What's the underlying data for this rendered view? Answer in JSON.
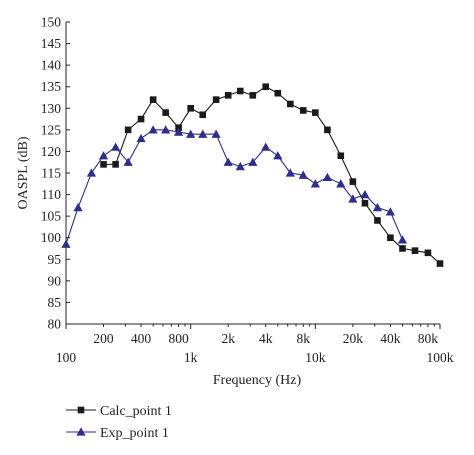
{
  "chart_data": {
    "type": "line",
    "xscale": "log",
    "xlabel": "Frequency (Hz)",
    "ylabel": "OASPL (dB)",
    "xlim": [
      100,
      100000
    ],
    "ylim": [
      80,
      150
    ],
    "grid": false,
    "legend_position": "bottom-left",
    "x_ticks_major": [
      {
        "v": 100,
        "label": "100"
      },
      {
        "v": 1000,
        "label": "1k"
      },
      {
        "v": 10000,
        "label": "10k"
      },
      {
        "v": 100000,
        "label": "100k"
      }
    ],
    "x_ticks_minor": [
      {
        "v": 200,
        "label": "200"
      },
      {
        "v": 400,
        "label": "400"
      },
      {
        "v": 800,
        "label": "800"
      },
      {
        "v": 2000,
        "label": "2k"
      },
      {
        "v": 4000,
        "label": "4k"
      },
      {
        "v": 8000,
        "label": "8k"
      },
      {
        "v": 20000,
        "label": "20k"
      },
      {
        "v": 40000,
        "label": "40k"
      },
      {
        "v": 80000,
        "label": "80k"
      }
    ],
    "y_ticks": [
      {
        "v": 80,
        "label": "80"
      },
      {
        "v": 85,
        "label": "85"
      },
      {
        "v": 90,
        "label": "90"
      },
      {
        "v": 95,
        "label": "95"
      },
      {
        "v": 100,
        "label": "100"
      },
      {
        "v": 105,
        "label": "105"
      },
      {
        "v": 110,
        "label": "110"
      },
      {
        "v": 115,
        "label": "115"
      },
      {
        "v": 120,
        "label": "120"
      },
      {
        "v": 125,
        "label": "125"
      },
      {
        "v": 130,
        "label": "130"
      },
      {
        "v": 135,
        "label": "135"
      },
      {
        "v": 140,
        "label": "140"
      },
      {
        "v": 145,
        "label": "145"
      },
      {
        "v": 150,
        "label": "150"
      }
    ],
    "series": [
      {
        "name": "Calc_point 1",
        "marker": "square",
        "color": "#1a1a1a",
        "points": [
          [
            200,
            117.0
          ],
          [
            250,
            117.0
          ],
          [
            315,
            125.0
          ],
          [
            400,
            127.5
          ],
          [
            500,
            132.0
          ],
          [
            630,
            129.0
          ],
          [
            800,
            125.5
          ],
          [
            1000,
            130.0
          ],
          [
            1250,
            128.5
          ],
          [
            1600,
            132.0
          ],
          [
            2000,
            133.0
          ],
          [
            2500,
            134.0
          ],
          [
            3150,
            133.0
          ],
          [
            4000,
            135.0
          ],
          [
            5000,
            133.5
          ],
          [
            6300,
            131.0
          ],
          [
            8000,
            129.5
          ],
          [
            10000,
            129.0
          ],
          [
            12500,
            125.0
          ],
          [
            16000,
            119.0
          ],
          [
            20000,
            113.0
          ],
          [
            25000,
            108.0
          ],
          [
            31500,
            104.0
          ],
          [
            40000,
            100.0
          ],
          [
            50000,
            97.5
          ],
          [
            63000,
            97.0
          ],
          [
            80000,
            96.5
          ],
          [
            100000,
            94.0
          ]
        ]
      },
      {
        "name": "Exp_point 1",
        "marker": "triangle",
        "color": "#2e2e8c",
        "points": [
          [
            100,
            98.5
          ],
          [
            125,
            107.0
          ],
          [
            160,
            115.0
          ],
          [
            200,
            119.0
          ],
          [
            250,
            121.0
          ],
          [
            315,
            117.5
          ],
          [
            400,
            123.0
          ],
          [
            500,
            125.0
          ],
          [
            630,
            125.0
          ],
          [
            800,
            124.5
          ],
          [
            1000,
            124.0
          ],
          [
            1250,
            124.0
          ],
          [
            1600,
            124.0
          ],
          [
            2000,
            117.5
          ],
          [
            2500,
            116.5
          ],
          [
            3150,
            117.5
          ],
          [
            4000,
            121.0
          ],
          [
            5000,
            119.0
          ],
          [
            6300,
            115.0
          ],
          [
            8000,
            114.5
          ],
          [
            10000,
            112.5
          ],
          [
            12500,
            114.0
          ],
          [
            16000,
            112.5
          ],
          [
            20000,
            109.0
          ],
          [
            25000,
            110.0
          ],
          [
            31500,
            107.0
          ],
          [
            40000,
            106.0
          ],
          [
            50000,
            99.5
          ]
        ]
      }
    ]
  }
}
